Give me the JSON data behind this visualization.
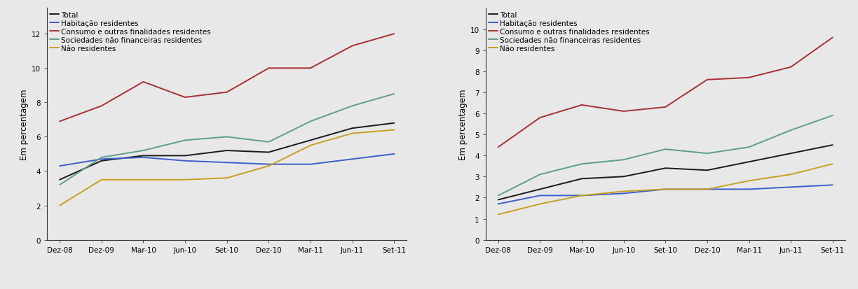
{
  "x_labels": [
    "Dez-08",
    "Dez-09",
    "Mar-10",
    "Jun-10",
    "Set-10",
    "Dez-10",
    "Mar-11",
    "Jun-11",
    "Set-11"
  ],
  "series_labels": [
    "Total",
    "Habitação residentes",
    "Consumo e outras finalidades residentes",
    "Sociedades não financeiras residentes",
    "Não residentes"
  ],
  "colors": [
    "#1a1a1a",
    "#3a5fcd",
    "#a83030",
    "#5c9e8a",
    "#c8a020"
  ],
  "left_chart": {
    "ylabel": "Em percentagem",
    "ylim": [
      0.0,
      13.5
    ],
    "yticks": [
      0.0,
      2.0,
      4.0,
      6.0,
      8.0,
      10.0,
      12.0
    ],
    "series": {
      "Total": [
        3.5,
        4.6,
        4.9,
        4.9,
        5.2,
        5.1,
        5.8,
        6.5,
        6.8
      ],
      "Habitação residentes": [
        4.3,
        4.7,
        4.8,
        4.6,
        4.5,
        4.4,
        4.4,
        4.7,
        5.0
      ],
      "Consumo e outras finalidades residentes": [
        6.9,
        7.8,
        9.2,
        8.3,
        8.6,
        10.0,
        10.0,
        11.3,
        12.0
      ],
      "Sociedades não financeiras residentes": [
        3.2,
        4.8,
        5.2,
        5.8,
        6.0,
        5.7,
        6.9,
        7.8,
        8.5
      ],
      "Não residentes": [
        2.0,
        3.5,
        3.5,
        3.5,
        3.6,
        4.3,
        5.5,
        6.2,
        6.4
      ]
    }
  },
  "right_chart": {
    "ylabel": "Em percentagem",
    "ylim": [
      0.0,
      11.0
    ],
    "yticks": [
      0.0,
      1.0,
      2.0,
      3.0,
      4.0,
      5.0,
      6.0,
      7.0,
      8.0,
      9.0,
      10.0
    ],
    "series": {
      "Total": [
        1.9,
        2.4,
        2.9,
        3.0,
        3.4,
        3.3,
        3.7,
        4.1,
        4.5
      ],
      "Habitação residentes": [
        1.7,
        2.1,
        2.1,
        2.2,
        2.4,
        2.4,
        2.4,
        2.5,
        2.6
      ],
      "Consumo e outras finalidades residentes": [
        4.4,
        5.8,
        6.4,
        6.1,
        6.3,
        7.6,
        7.7,
        8.2,
        9.6
      ],
      "Sociedades não financeiras residentes": [
        2.1,
        3.1,
        3.6,
        3.8,
        4.3,
        4.1,
        4.4,
        5.2,
        5.9
      ],
      "Não residentes": [
        1.2,
        1.7,
        2.1,
        2.3,
        2.4,
        2.4,
        2.8,
        3.1,
        3.6
      ]
    }
  },
  "bg_color": "#e8e8e8",
  "plot_bg_color": "#e8e8e8",
  "line_width": 1.4,
  "fontsize_tick": 7.5,
  "fontsize_label": 8.5,
  "fontsize_legend": 7.5
}
